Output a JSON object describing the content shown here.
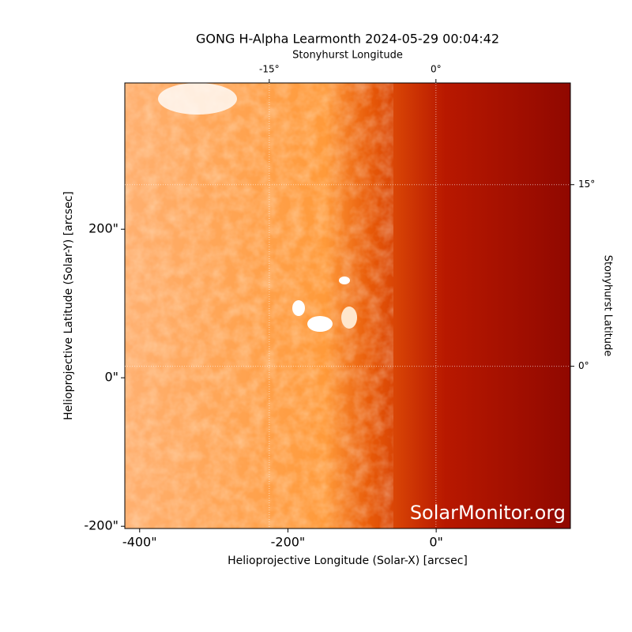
{
  "chart_data": {
    "type": "image",
    "title": "GONG H-Alpha Learmonth 2024-05-29 00:04:42",
    "x_label": "Helioprojective Longitude (Solar-X) [arcsec]",
    "y_label": "Helioprojective Latitude (Solar-Y) [arcsec]",
    "x2_label": "Stonyhurst Longitude",
    "y2_label": "Stonyhurst Latitude",
    "annotation": "SolarMonitor.org",
    "xlim": [
      -420,
      181
    ],
    "ylim": [
      -203,
      397
    ],
    "xticks": [
      {
        "value": -400,
        "label": "-400\""
      },
      {
        "value": -200,
        "label": "-200\""
      },
      {
        "value": 0,
        "label": "0\""
      }
    ],
    "yticks": [
      {
        "value": -200,
        "label": "-200\""
      },
      {
        "value": 0,
        "label": "0\""
      },
      {
        "value": 200,
        "label": "200\""
      }
    ],
    "x2lim": [
      -28,
      12.1
    ],
    "y2lim": [
      -13.4,
      23.4
    ],
    "x2ticks": [
      {
        "value": -15,
        "label": "-15°"
      },
      {
        "value": 0,
        "label": "0°"
      }
    ],
    "y2ticks": [
      {
        "value": 0,
        "label": "0°"
      },
      {
        "value": 15,
        "label": "15°"
      }
    ],
    "grid": true
  }
}
